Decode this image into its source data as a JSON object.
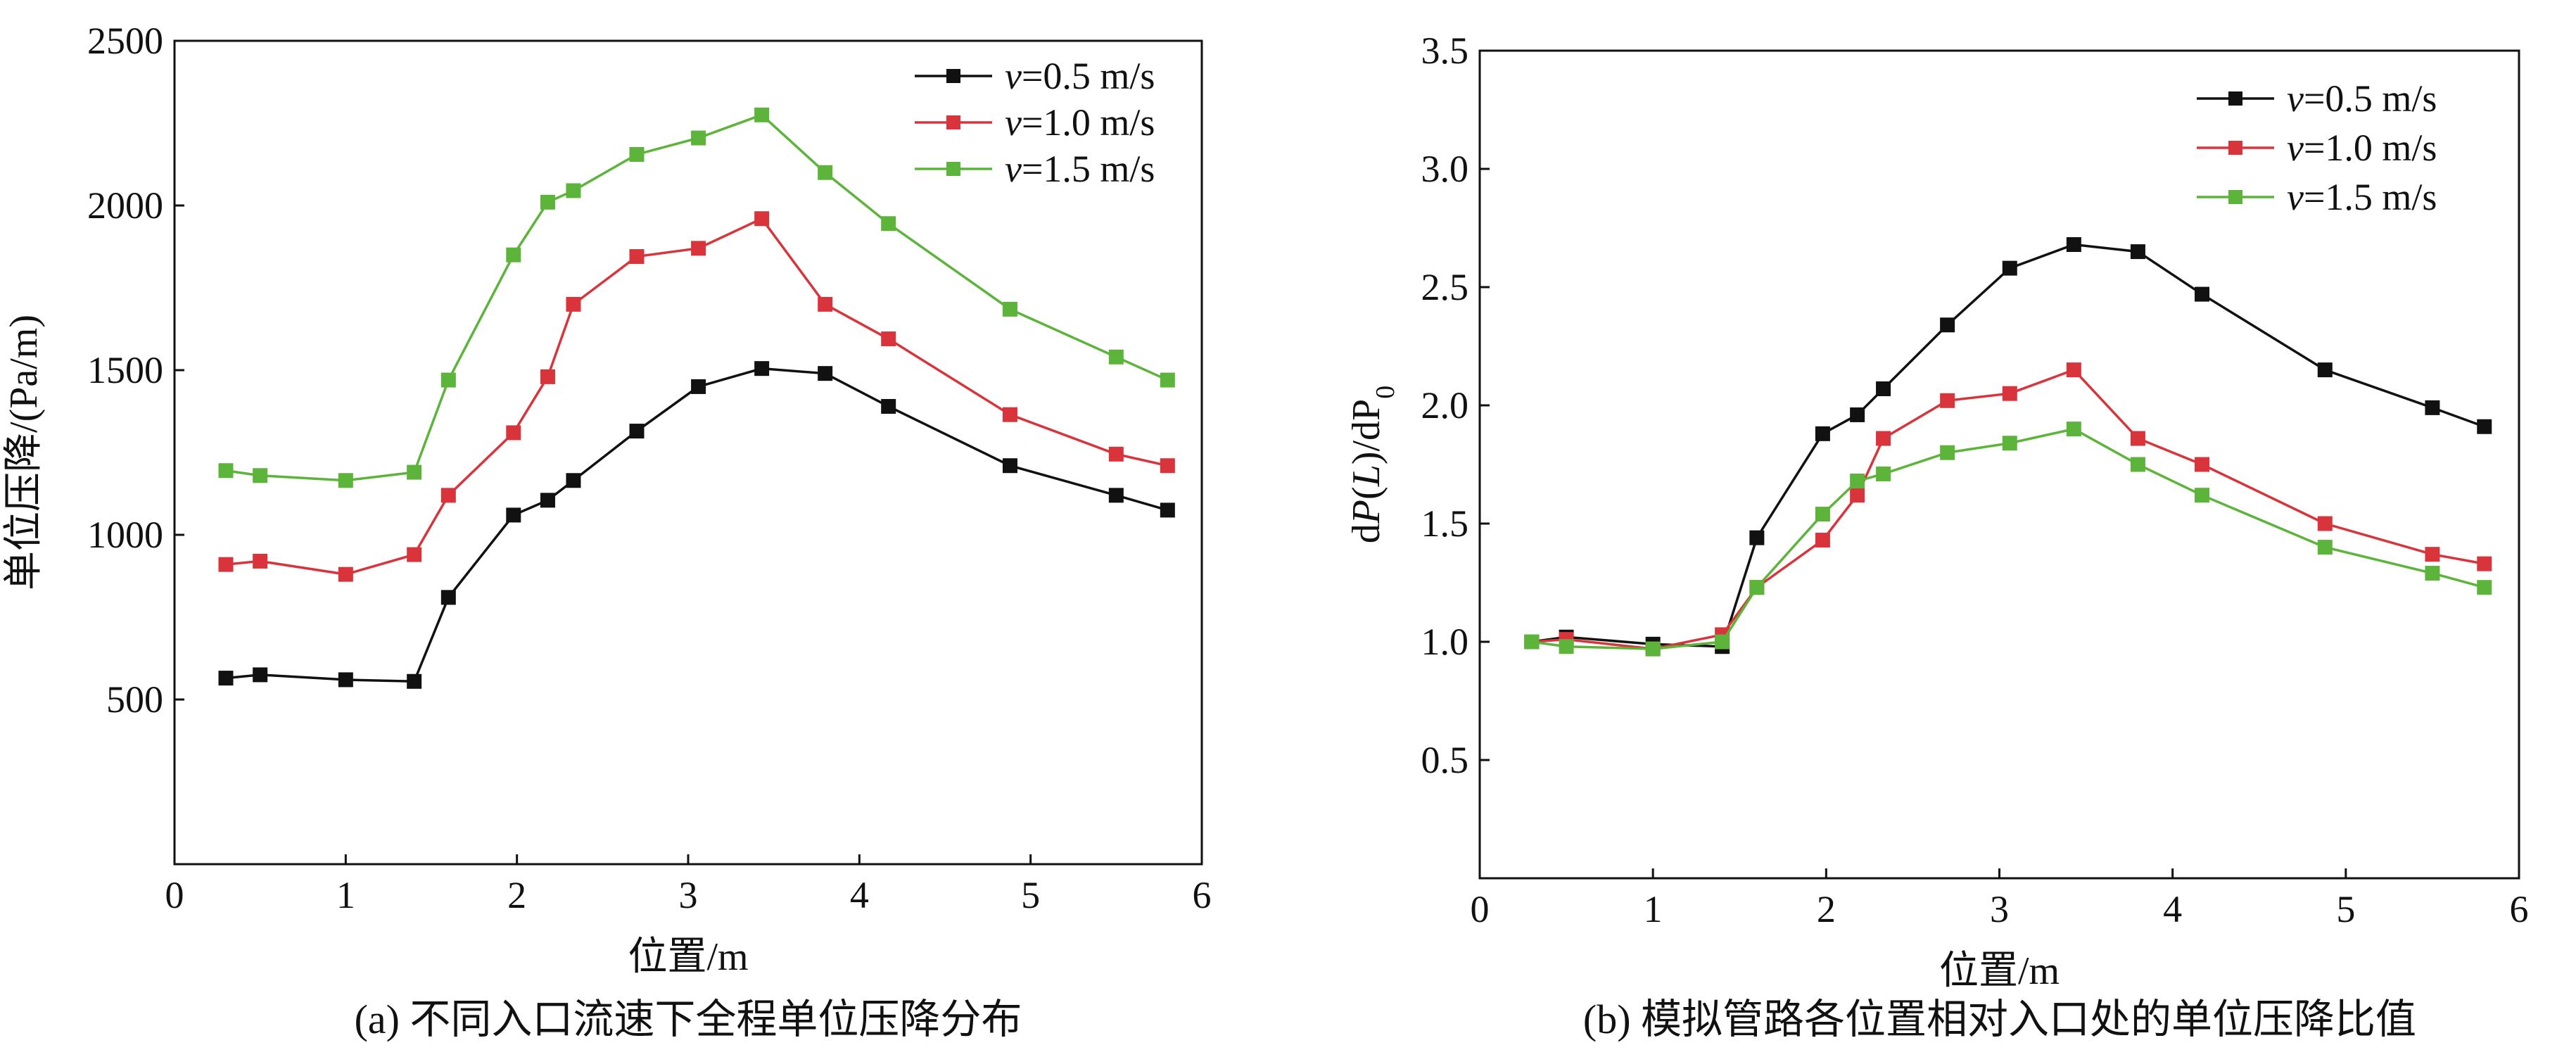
{
  "colors": {
    "black": "#111111",
    "red": "#d9343b",
    "green": "#5cb43a"
  },
  "chart_data": [
    {
      "type": "line",
      "panel": "a",
      "caption": "(a) 不同入口流速下全程单位压降分布",
      "xlabel": "位置/m",
      "ylabel": "单位压降/(Pa/m)",
      "xlim": [
        0,
        6
      ],
      "ylim": [
        0,
        2500
      ],
      "xticks": [
        "0",
        "1",
        "2",
        "3",
        "4",
        "5",
        "6"
      ],
      "yticks": [
        "500",
        "1000",
        "1500",
        "2000",
        "2500"
      ],
      "legend_position": "top-right",
      "x": [
        0.3,
        0.5,
        1.0,
        1.4,
        1.6,
        1.98,
        2.18,
        2.33,
        2.7,
        3.06,
        3.43,
        3.8,
        4.17,
        4.88,
        5.5,
        5.8
      ],
      "series": [
        {
          "name_italic": "v",
          "name_rest": "=0.5 m/s",
          "color": "#111111",
          "values": [
            565,
            575,
            560,
            555,
            810,
            1060,
            1105,
            1165,
            1315,
            1450,
            1505,
            1490,
            1390,
            1210,
            1120,
            1075
          ]
        },
        {
          "name_italic": "v",
          "name_rest": "=1.0 m/s",
          "color": "#d9343b",
          "values": [
            910,
            920,
            880,
            940,
            1120,
            1310,
            1480,
            1700,
            1845,
            1870,
            1960,
            1700,
            1595,
            1365,
            1245,
            1210
          ]
        },
        {
          "name_italic": "v",
          "name_rest": "=1.5 m/s",
          "color": "#5cb43a",
          "values": [
            1195,
            1180,
            1165,
            1190,
            1470,
            1850,
            2010,
            2045,
            2155,
            2205,
            2275,
            2100,
            1945,
            1685,
            1540,
            1470
          ]
        }
      ]
    },
    {
      "type": "line",
      "panel": "b",
      "caption": "(b) 模拟管路各位置相对入口处的单位压降比值",
      "xlabel": "位置/m",
      "ylabel_parts": [
        "d",
        "P",
        "(",
        "L",
        ")/d",
        "P",
        "0"
      ],
      "xlim": [
        0,
        6
      ],
      "ylim": [
        0,
        3.5
      ],
      "xticks": [
        "0",
        "1",
        "2",
        "3",
        "4",
        "5",
        "6"
      ],
      "yticks": [
        "0.5",
        "1.0",
        "1.5",
        "2.0",
        "2.5",
        "3.0",
        "3.5"
      ],
      "legend_position": "top-right",
      "x": [
        0.3,
        0.5,
        1.0,
        1.4,
        1.6,
        1.98,
        2.18,
        2.33,
        2.7,
        3.06,
        3.43,
        3.8,
        4.17,
        4.88,
        5.5,
        5.8
      ],
      "series": [
        {
          "name_italic": "v",
          "name_rest": "=0.5 m/s",
          "color": "#111111",
          "values": [
            1.0,
            1.02,
            0.99,
            0.98,
            1.44,
            1.88,
            1.96,
            2.07,
            2.34,
            2.58,
            2.68,
            2.65,
            2.47,
            2.15,
            1.99,
            1.91
          ]
        },
        {
          "name_italic": "v",
          "name_rest": "=1.0 m/s",
          "color": "#d9343b",
          "values": [
            1.0,
            1.01,
            0.97,
            1.03,
            1.23,
            1.43,
            1.62,
            1.86,
            2.02,
            2.05,
            2.15,
            1.86,
            1.75,
            1.5,
            1.37,
            1.33
          ]
        },
        {
          "name_italic": "v",
          "name_rest": "=1.5 m/s",
          "color": "#5cb43a",
          "values": [
            1.0,
            0.98,
            0.97,
            1.0,
            1.23,
            1.54,
            1.68,
            1.71,
            1.8,
            1.84,
            1.9,
            1.75,
            1.62,
            1.4,
            1.29,
            1.23
          ]
        }
      ]
    }
  ]
}
